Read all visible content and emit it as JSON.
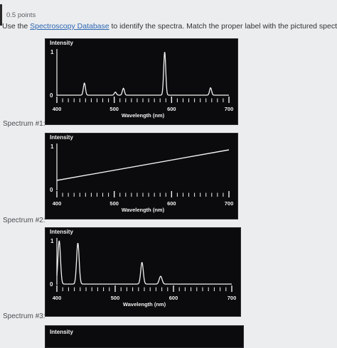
{
  "header": {
    "points": "0.5 points",
    "question_prefix": "Use the ",
    "database_link": "Spectroscopy Database",
    "question_suffix": " to identify the spectra. Match the proper label with the pictured spectrum."
  },
  "spectra": [
    {
      "label": "Spectrum #1:",
      "type": "emission-lines",
      "peaks_nm": [
        448,
        502,
        516,
        588,
        668
      ],
      "relative_intensity": [
        0.28,
        0.07,
        0.16,
        1.0,
        0.17
      ]
    },
    {
      "label": "Spectrum #2:",
      "type": "continuous"
    },
    {
      "label": "Spectrum #3:",
      "type": "emission-lines",
      "peaks_nm": [
        404,
        436,
        546,
        577,
        579
      ],
      "relative_intensity": [
        1.0,
        0.95,
        0.5,
        0.1,
        0.1
      ]
    }
  ],
  "chart_common": {
    "ylabel": "Intensity",
    "y_top_tick": "1",
    "y_bottom_tick": "0",
    "xlabel": "Wavelength (nm)",
    "x_ticks": [
      "400",
      "500",
      "600",
      "700"
    ]
  },
  "colors": {
    "background": "#ecedee",
    "panel": "#0b0b0d",
    "line": "#f2f2f2",
    "link": "#2b66b3"
  }
}
